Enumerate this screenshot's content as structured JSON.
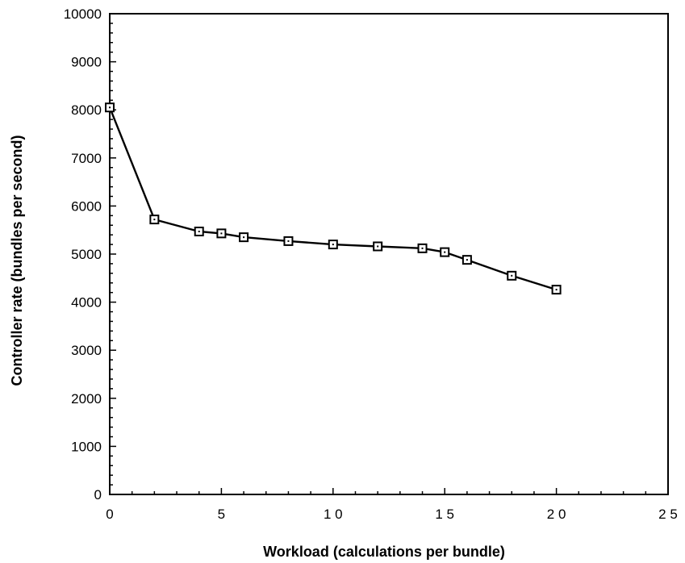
{
  "chart_data": {
    "type": "line",
    "title": "",
    "xlabel": "Workload (calculations per bundle)",
    "ylabel": "Controller rate (bundles per second)",
    "xlim": [
      0,
      25
    ],
    "ylim": [
      0,
      10000
    ],
    "x_ticks": [
      0,
      5,
      10,
      15,
      20,
      25
    ],
    "x_tick_labels": [
      "0",
      "5",
      "1 0",
      "1 5",
      "2 0",
      "2 5"
    ],
    "y_ticks": [
      0,
      1000,
      2000,
      3000,
      4000,
      5000,
      6000,
      7000,
      8000,
      9000,
      10000
    ],
    "y_tick_labels": [
      "0",
      "1000",
      "2000",
      "3000",
      "4000",
      "5000",
      "6000",
      "7000",
      "8000",
      "9000",
      "10000"
    ],
    "grid": false,
    "legend": "none",
    "marker": "open-square",
    "colors": {
      "line": "#000000",
      "marker_fill": "#ffffff"
    },
    "series": [
      {
        "x": [
          0,
          2,
          4,
          5,
          6,
          8,
          10,
          12,
          14,
          15,
          16,
          18,
          20
        ],
        "y": [
          8050,
          5720,
          5470,
          5430,
          5350,
          5270,
          5200,
          5160,
          5120,
          5040,
          4880,
          4550,
          4260
        ]
      }
    ]
  }
}
